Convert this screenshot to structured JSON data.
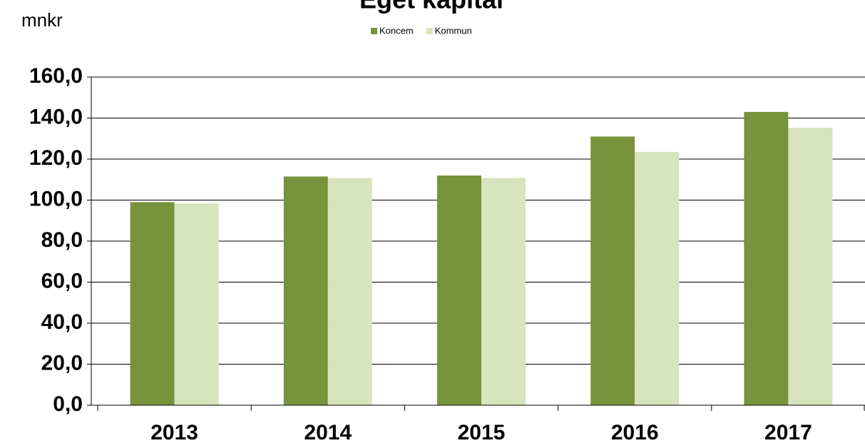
{
  "chart_data": {
    "type": "bar",
    "title": "Eget kapital",
    "y_label": "mnkr",
    "categories": [
      "2013",
      "2014",
      "2015",
      "2016",
      "2017"
    ],
    "series": [
      {
        "name": "Koncem",
        "color": "#77933c",
        "values": [
          99,
          111.5,
          112,
          131,
          143
        ]
      },
      {
        "name": "Kommun",
        "color": "#d7e4bd",
        "values": [
          98.4,
          110.8,
          110.8,
          123.5,
          135.3
        ]
      }
    ],
    "ylim": [
      0,
      160
    ],
    "yticks": [
      {
        "value": 0,
        "label": "0,0"
      },
      {
        "value": 20,
        "label": "20,0"
      },
      {
        "value": 40,
        "label": "40,0"
      },
      {
        "value": 60,
        "label": "60,0"
      },
      {
        "value": 80,
        "label": "80,0"
      },
      {
        "value": 100,
        "label": "100,0"
      },
      {
        "value": 120,
        "label": "120,0"
      },
      {
        "value": 140,
        "label": "140,0"
      },
      {
        "value": 160,
        "label": "160,0"
      }
    ],
    "grid": true,
    "legend": "top"
  }
}
